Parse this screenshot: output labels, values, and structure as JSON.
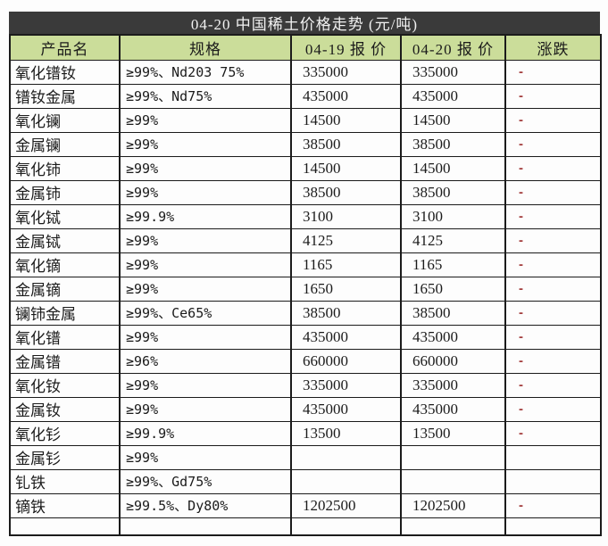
{
  "title": "04-20 中国稀土价格走势 (元/吨)",
  "colors": {
    "title_bar_bg": "#3a3a3a",
    "header_bg": "#cbdd9a",
    "border": "#1b1b1b",
    "change_dash": "#a33e3e"
  },
  "table": {
    "columns": [
      {
        "key": "product",
        "label": "产品名"
      },
      {
        "key": "spec",
        "label": "规格"
      },
      {
        "key": "price_0419",
        "label": "04-19 报 价"
      },
      {
        "key": "price_0420",
        "label": "04-20 报 价"
      },
      {
        "key": "change",
        "label": "涨跌"
      }
    ],
    "rows": [
      {
        "product": "氧化镨钕",
        "spec": "≥99%、Nd203 75%",
        "price_0419": "335000",
        "price_0420": "335000",
        "change": "-"
      },
      {
        "product": "镨钕金属",
        "spec": "≥99%、Nd75%",
        "price_0419": "435000",
        "price_0420": "435000",
        "change": "-"
      },
      {
        "product": "氧化镧",
        "spec": "≥99%",
        "price_0419": "14500",
        "price_0420": "14500",
        "change": "-"
      },
      {
        "product": "金属镧",
        "spec": "≥99%",
        "price_0419": "38500",
        "price_0420": "38500",
        "change": "-"
      },
      {
        "product": "氧化铈",
        "spec": "≥99%",
        "price_0419": "14500",
        "price_0420": "14500",
        "change": "-"
      },
      {
        "product": "金属铈",
        "spec": "≥99%",
        "price_0419": "38500",
        "price_0420": "38500",
        "change": "-"
      },
      {
        "product": "氧化铽",
        "spec": "≥99.9%",
        "price_0419": "3100",
        "price_0420": "3100",
        "change": "-"
      },
      {
        "product": "金属铽",
        "spec": "≥99%",
        "price_0419": "4125",
        "price_0420": "4125",
        "change": "-"
      },
      {
        "product": "氧化镝",
        "spec": "≥99%",
        "price_0419": "1165",
        "price_0420": "1165",
        "change": "-"
      },
      {
        "product": "金属镝",
        "spec": "≥99%",
        "price_0419": "1650",
        "price_0420": "1650",
        "change": "-"
      },
      {
        "product": "镧铈金属",
        "spec": "≥99%、Ce65%",
        "price_0419": "38500",
        "price_0420": "38500",
        "change": "-"
      },
      {
        "product": "氧化镨",
        "spec": "≥99%",
        "price_0419": "435000",
        "price_0420": "435000",
        "change": "-"
      },
      {
        "product": "金属镨",
        "spec": "≥96%",
        "price_0419": "660000",
        "price_0420": "660000",
        "change": "-"
      },
      {
        "product": "氧化钕",
        "spec": "≥99%",
        "price_0419": "335000",
        "price_0420": "335000",
        "change": "-"
      },
      {
        "product": "金属钕",
        "spec": "≥99%",
        "price_0419": "435000",
        "price_0420": "435000",
        "change": "-"
      },
      {
        "product": "氧化钐",
        "spec": "≥99.9%",
        "price_0419": "13500",
        "price_0420": "13500",
        "change": "-"
      },
      {
        "product": "金属钐",
        "spec": "≥99%",
        "price_0419": "",
        "price_0420": "",
        "change": ""
      },
      {
        "product": "钆铁",
        "spec": "≥99%、Gd75%",
        "price_0419": "",
        "price_0420": "",
        "change": ""
      },
      {
        "product": "镝铁",
        "spec": "≥99.5%、Dy80%",
        "price_0419": "1202500",
        "price_0420": "1202500",
        "change": "-"
      }
    ]
  }
}
